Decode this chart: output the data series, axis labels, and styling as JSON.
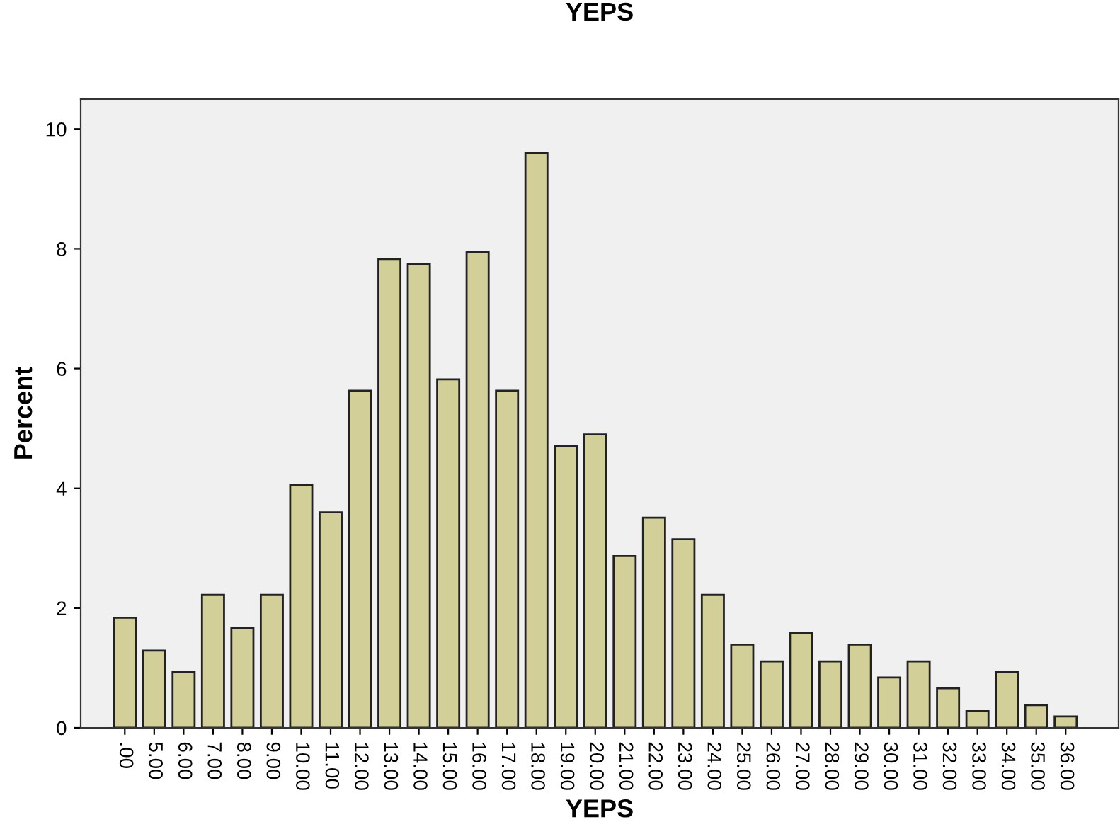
{
  "chart_data": {
    "type": "bar",
    "title": "YEPS",
    "xlabel": "YEPS",
    "ylabel": "Percent",
    "categories": [
      ".00",
      "5.00",
      "6.00",
      "7.00",
      "8.00",
      "9.00",
      "10.00",
      "11.00",
      "12.00",
      "13.00",
      "14.00",
      "15.00",
      "16.00",
      "17.00",
      "18.00",
      "19.00",
      "20.00",
      "21.00",
      "22.00",
      "23.00",
      "24.00",
      "25.00",
      "26.00",
      "27.00",
      "28.00",
      "29.00",
      "30.00",
      "31.00",
      "32.00",
      "33.00",
      "34.00",
      "35.00",
      "36.00"
    ],
    "values": [
      1.84,
      1.29,
      0.93,
      2.22,
      1.67,
      2.22,
      4.06,
      3.6,
      5.63,
      7.83,
      7.75,
      5.82,
      7.94,
      5.63,
      9.6,
      4.71,
      4.9,
      2.87,
      3.51,
      3.15,
      2.22,
      1.39,
      1.11,
      1.58,
      1.11,
      1.39,
      0.84,
      1.11,
      0.66,
      0.28,
      0.93,
      0.38,
      0.19
    ],
    "color": "#d3cf98",
    "ylim": [
      0,
      10.5
    ],
    "yticks": [
      0,
      2,
      4,
      6,
      8,
      10
    ],
    "grid": false
  }
}
